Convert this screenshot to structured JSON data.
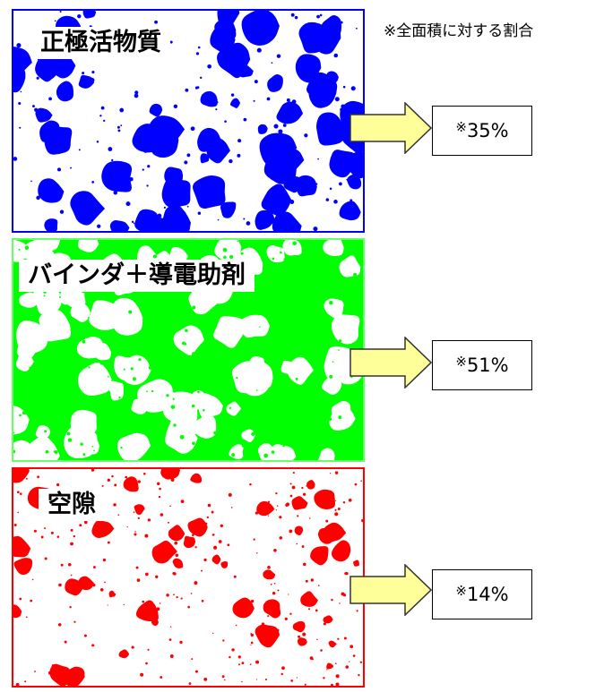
{
  "note": "※全面積に対する割合",
  "panels": [
    {
      "label": "正極活物質",
      "percent_mark": "※",
      "percent_value": "35%",
      "fraction": 0.35,
      "color": "#0000ff",
      "phase_color": "#0000ff"
    },
    {
      "label": "バインダ＋導電助剤",
      "percent_mark": "※",
      "percent_value": "51%",
      "fraction": 0.51,
      "color": "#00ff00",
      "phase_color": "#00ff00"
    },
    {
      "label": "空隙",
      "percent_mark": "※",
      "percent_value": "14%",
      "fraction": 0.14,
      "color": "#ff0000",
      "phase_color": "#ff0000"
    }
  ],
  "arrow_color": "#ffff99",
  "icons": [
    "right-arrow-icon"
  ]
}
